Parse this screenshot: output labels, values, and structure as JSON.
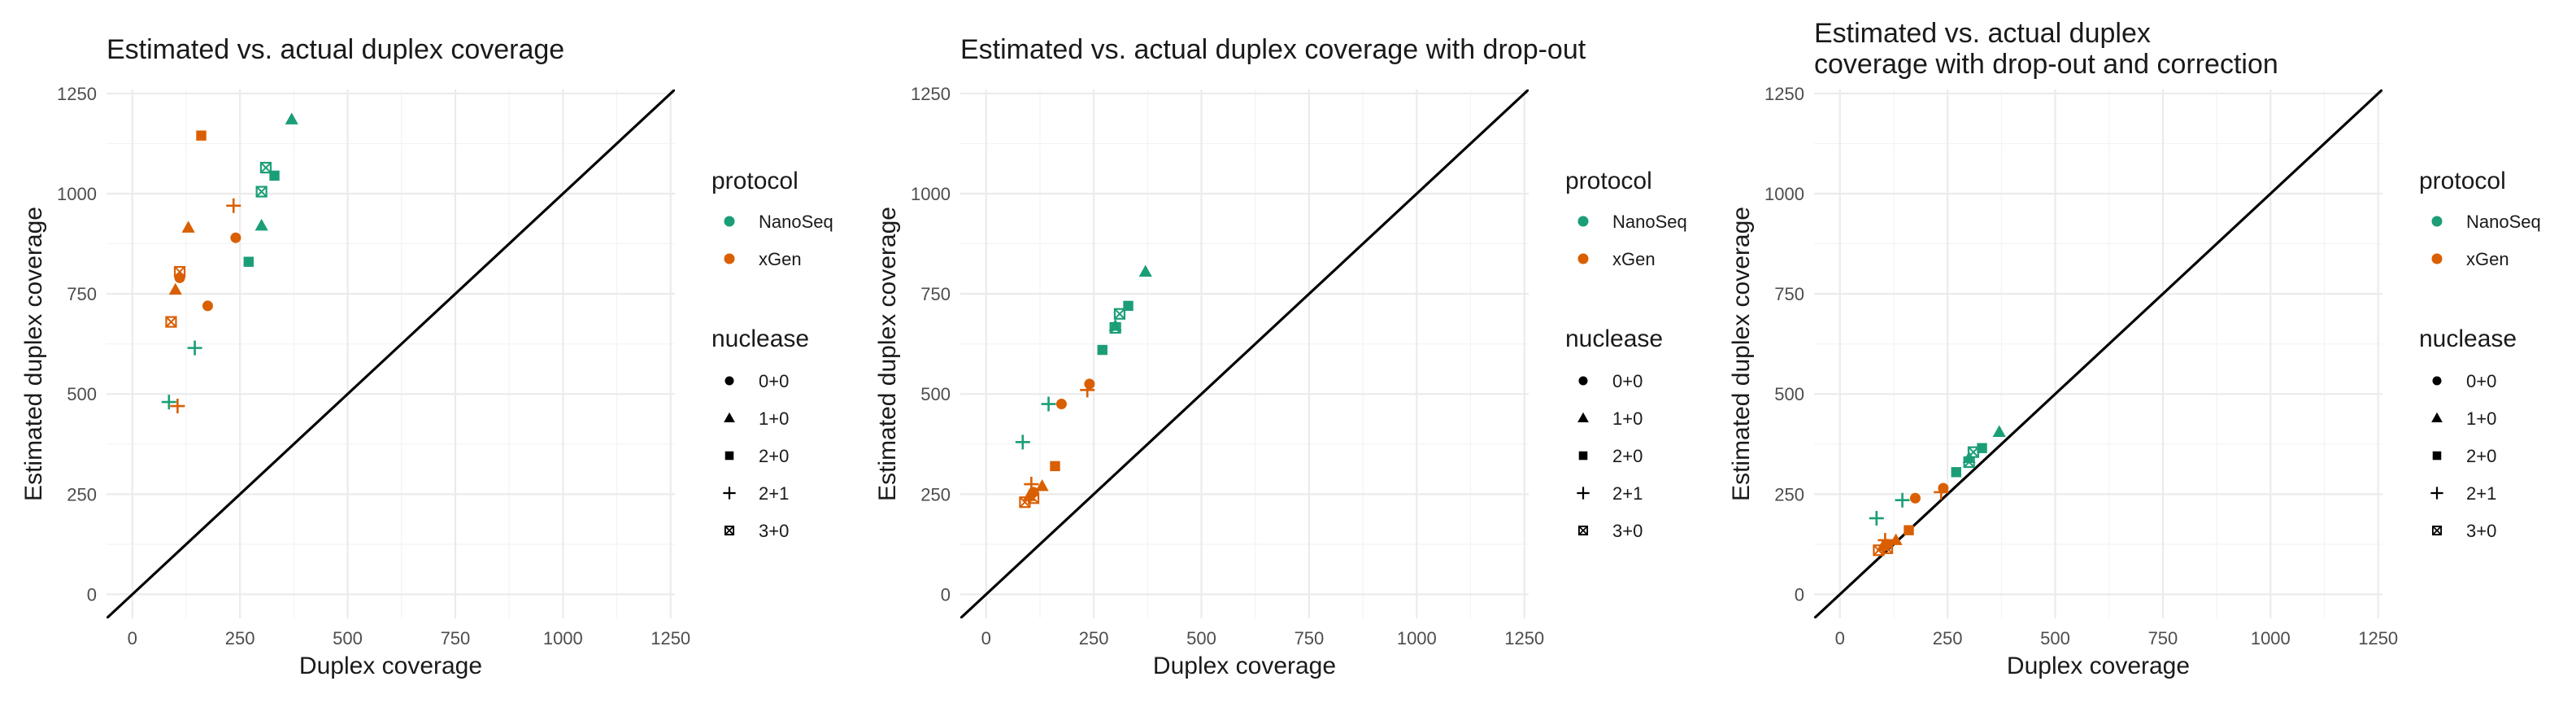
{
  "colors": {
    "NanoSeq": "#1b9e77",
    "xGen": "#d95f02"
  },
  "legend": {
    "protocol_title": "protocol",
    "protocol_items": [
      "NanoSeq",
      "xGen"
    ],
    "nuclease_title": "nuclease",
    "nuclease_items": [
      {
        "label": "0+0",
        "shape": "circle"
      },
      {
        "label": "1+0",
        "shape": "triangle"
      },
      {
        "label": "2+0",
        "shape": "square"
      },
      {
        "label": "2+1",
        "shape": "plus"
      },
      {
        "label": "3+0",
        "shape": "square-cross"
      }
    ]
  },
  "chart_data": [
    {
      "type": "scatter",
      "title": [
        "Estimated vs. actual duplex coverage"
      ],
      "xlabel": "Duplex coverage",
      "ylabel": "Estimated duplex coverage",
      "xlim": [
        -60,
        1260
      ],
      "ylim": [
        -60,
        1260
      ],
      "ticks": [
        0,
        250,
        500,
        750,
        1000,
        1250
      ],
      "tick_labels": [
        "0",
        "250",
        "500",
        "750",
        "1000",
        "1250"
      ],
      "reference_line": "y = x",
      "grid": true,
      "points": [
        {
          "x": 370,
          "y": 1185,
          "protocol": "NanoSeq",
          "nuclease": "1+0"
        },
        {
          "x": 160,
          "y": 1145,
          "protocol": "xGen",
          "nuclease": "2+0"
        },
        {
          "x": 310,
          "y": 1065,
          "protocol": "NanoSeq",
          "nuclease": "3+0"
        },
        {
          "x": 330,
          "y": 1045,
          "protocol": "NanoSeq",
          "nuclease": "2+0"
        },
        {
          "x": 300,
          "y": 1005,
          "protocol": "NanoSeq",
          "nuclease": "3+0"
        },
        {
          "x": 235,
          "y": 970,
          "protocol": "xGen",
          "nuclease": "2+1"
        },
        {
          "x": 300,
          "y": 920,
          "protocol": "NanoSeq",
          "nuclease": "1+0"
        },
        {
          "x": 130,
          "y": 915,
          "protocol": "xGen",
          "nuclease": "1+0"
        },
        {
          "x": 240,
          "y": 890,
          "protocol": "xGen",
          "nuclease": "0+0"
        },
        {
          "x": 270,
          "y": 830,
          "protocol": "NanoSeq",
          "nuclease": "2+0"
        },
        {
          "x": 110,
          "y": 805,
          "protocol": "xGen",
          "nuclease": "3+0"
        },
        {
          "x": 110,
          "y": 790,
          "protocol": "xGen",
          "nuclease": "0+0"
        },
        {
          "x": 100,
          "y": 760,
          "protocol": "xGen",
          "nuclease": "1+0"
        },
        {
          "x": 175,
          "y": 720,
          "protocol": "xGen",
          "nuclease": "0+0"
        },
        {
          "x": 90,
          "y": 680,
          "protocol": "xGen",
          "nuclease": "3+0"
        },
        {
          "x": 145,
          "y": 615,
          "protocol": "NanoSeq",
          "nuclease": "2+1"
        },
        {
          "x": 85,
          "y": 480,
          "protocol": "NanoSeq",
          "nuclease": "2+1"
        },
        {
          "x": 105,
          "y": 470,
          "protocol": "xGen",
          "nuclease": "2+1"
        }
      ]
    },
    {
      "type": "scatter",
      "title": [
        "Estimated vs. actual duplex coverage with drop-out"
      ],
      "xlabel": "Duplex coverage",
      "ylabel": "Estimated duplex coverage",
      "xlim": [
        -60,
        1260
      ],
      "ylim": [
        -60,
        1260
      ],
      "ticks": [
        0,
        250,
        500,
        750,
        1000,
        1250
      ],
      "tick_labels": [
        "0",
        "250",
        "500",
        "750",
        "1000",
        "1250"
      ],
      "reference_line": "y = x",
      "grid": true,
      "points": [
        {
          "x": 370,
          "y": 805,
          "protocol": "NanoSeq",
          "nuclease": "1+0"
        },
        {
          "x": 330,
          "y": 720,
          "protocol": "NanoSeq",
          "nuclease": "2+0"
        },
        {
          "x": 310,
          "y": 700,
          "protocol": "NanoSeq",
          "nuclease": "3+0"
        },
        {
          "x": 300,
          "y": 670,
          "protocol": "NanoSeq",
          "nuclease": "1+0"
        },
        {
          "x": 300,
          "y": 665,
          "protocol": "NanoSeq",
          "nuclease": "3+0"
        },
        {
          "x": 270,
          "y": 610,
          "protocol": "NanoSeq",
          "nuclease": "2+0"
        },
        {
          "x": 240,
          "y": 525,
          "protocol": "xGen",
          "nuclease": "0+0"
        },
        {
          "x": 235,
          "y": 510,
          "protocol": "xGen",
          "nuclease": "2+1"
        },
        {
          "x": 145,
          "y": 475,
          "protocol": "NanoSeq",
          "nuclease": "2+1"
        },
        {
          "x": 175,
          "y": 475,
          "protocol": "xGen",
          "nuclease": "0+0"
        },
        {
          "x": 85,
          "y": 380,
          "protocol": "NanoSeq",
          "nuclease": "2+1"
        },
        {
          "x": 160,
          "y": 320,
          "protocol": "xGen",
          "nuclease": "2+0"
        },
        {
          "x": 105,
          "y": 275,
          "protocol": "xGen",
          "nuclease": "2+1"
        },
        {
          "x": 130,
          "y": 270,
          "protocol": "xGen",
          "nuclease": "1+0"
        },
        {
          "x": 110,
          "y": 255,
          "protocol": "xGen",
          "nuclease": "0+0"
        },
        {
          "x": 100,
          "y": 245,
          "protocol": "xGen",
          "nuclease": "1+0"
        },
        {
          "x": 110,
          "y": 240,
          "protocol": "xGen",
          "nuclease": "3+0"
        },
        {
          "x": 90,
          "y": 230,
          "protocol": "xGen",
          "nuclease": "3+0"
        }
      ]
    },
    {
      "type": "scatter",
      "title": [
        "Estimated vs. actual duplex",
        "coverage with drop-out and correction"
      ],
      "xlabel": "Duplex coverage",
      "ylabel": "Estimated duplex coverage",
      "xlim": [
        -60,
        1260
      ],
      "ylim": [
        -60,
        1260
      ],
      "ticks": [
        0,
        250,
        500,
        750,
        1000,
        1250
      ],
      "tick_labels": [
        "0",
        "250",
        "500",
        "750",
        "1000",
        "1250"
      ],
      "reference_line": "y = x",
      "grid": true,
      "points": [
        {
          "x": 370,
          "y": 405,
          "protocol": "NanoSeq",
          "nuclease": "1+0"
        },
        {
          "x": 330,
          "y": 365,
          "protocol": "NanoSeq",
          "nuclease": "2+0"
        },
        {
          "x": 310,
          "y": 355,
          "protocol": "NanoSeq",
          "nuclease": "3+0"
        },
        {
          "x": 300,
          "y": 340,
          "protocol": "NanoSeq",
          "nuclease": "1+0"
        },
        {
          "x": 300,
          "y": 330,
          "protocol": "NanoSeq",
          "nuclease": "3+0"
        },
        {
          "x": 270,
          "y": 305,
          "protocol": "NanoSeq",
          "nuclease": "2+0"
        },
        {
          "x": 240,
          "y": 265,
          "protocol": "xGen",
          "nuclease": "0+0"
        },
        {
          "x": 235,
          "y": 255,
          "protocol": "xGen",
          "nuclease": "2+1"
        },
        {
          "x": 145,
          "y": 235,
          "protocol": "NanoSeq",
          "nuclease": "2+1"
        },
        {
          "x": 175,
          "y": 240,
          "protocol": "xGen",
          "nuclease": "0+0"
        },
        {
          "x": 85,
          "y": 190,
          "protocol": "NanoSeq",
          "nuclease": "2+1"
        },
        {
          "x": 160,
          "y": 160,
          "protocol": "xGen",
          "nuclease": "2+0"
        },
        {
          "x": 105,
          "y": 135,
          "protocol": "xGen",
          "nuclease": "2+1"
        },
        {
          "x": 130,
          "y": 135,
          "protocol": "xGen",
          "nuclease": "1+0"
        },
        {
          "x": 110,
          "y": 125,
          "protocol": "xGen",
          "nuclease": "0+0"
        },
        {
          "x": 100,
          "y": 120,
          "protocol": "xGen",
          "nuclease": "1+0"
        },
        {
          "x": 110,
          "y": 115,
          "protocol": "xGen",
          "nuclease": "3+0"
        },
        {
          "x": 90,
          "y": 110,
          "protocol": "xGen",
          "nuclease": "3+0"
        }
      ]
    }
  ]
}
